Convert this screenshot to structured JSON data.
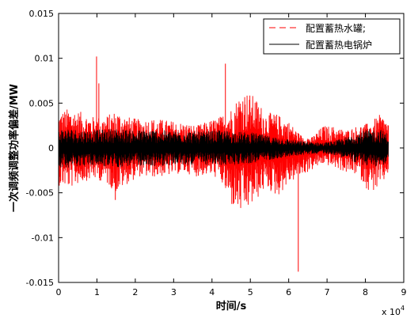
{
  "chart_data": {
    "type": "line",
    "xlabel": "时间/s",
    "ylabel": "一次调频调整功率偏差/MW",
    "x_multiplier_label": "x 10",
    "x_multiplier_exponent": "4",
    "xlim": [
      0,
      9
    ],
    "ylim": [
      -0.015,
      0.015
    ],
    "x_ticks": [
      "0",
      "1",
      "2",
      "3",
      "4",
      "5",
      "6",
      "7",
      "8",
      "9"
    ],
    "y_ticks": [
      "0.015",
      "0.01",
      "0.005",
      "0",
      "-0.005",
      "-0.01",
      "-0.015"
    ],
    "grid": false,
    "legend_position": "top-right",
    "series": [
      {
        "name": "配置蓄热水罐;",
        "color": "#ff0000",
        "line_style": "dashed",
        "envelope": {
          "x": [
            0,
            0.3,
            0.6,
            0.9,
            1.2,
            1.5,
            1.8,
            2.1,
            2.4,
            2.7,
            3.0,
            3.3,
            3.6,
            3.9,
            4.2,
            4.5,
            4.8,
            5.1,
            5.4,
            5.7,
            6.0,
            6.3,
            6.6,
            6.9,
            7.2,
            7.5,
            7.8,
            8.1,
            8.4,
            8.6
          ],
          "upper": [
            0.004,
            0.0045,
            0.004,
            0.0035,
            0.0035,
            0.0042,
            0.0035,
            0.0032,
            0.0033,
            0.0032,
            0.003,
            0.0028,
            0.0025,
            0.003,
            0.0035,
            0.0045,
            0.0065,
            0.0058,
            0.004,
            0.0038,
            0.003,
            0.0015,
            0.0012,
            0.0025,
            0.0024,
            0.002,
            0.0025,
            0.0028,
            0.0038,
            0.003
          ],
          "lower": [
            -0.0042,
            -0.0045,
            -0.0038,
            -0.0035,
            -0.0038,
            -0.005,
            -0.004,
            -0.0032,
            -0.0033,
            -0.0032,
            -0.003,
            -0.0028,
            -0.0032,
            -0.003,
            -0.0035,
            -0.0065,
            -0.0075,
            -0.0062,
            -0.0045,
            -0.0055,
            -0.004,
            -0.0032,
            -0.0025,
            -0.0018,
            -0.0022,
            -0.0028,
            -0.003,
            -0.005,
            -0.0045,
            -0.0028
          ]
        },
        "spikes": [
          {
            "x": 0.99,
            "y": 0.0102
          },
          {
            "x": 1.05,
            "y": 0.0072
          },
          {
            "x": 4.35,
            "y": 0.0094
          },
          {
            "x": 6.25,
            "y": -0.0138
          },
          {
            "x": 1.48,
            "y": -0.0058
          }
        ]
      },
      {
        "name": "配置蓄热电锅炉",
        "color": "#000000",
        "line_style": "solid",
        "envelope": {
          "x": [
            0,
            0.3,
            0.6,
            0.9,
            1.2,
            1.5,
            1.8,
            2.1,
            2.4,
            2.7,
            3.0,
            3.3,
            3.6,
            3.9,
            4.2,
            4.5,
            4.8,
            5.1,
            5.4,
            5.7,
            6.0,
            6.3,
            6.6,
            6.9,
            7.2,
            7.5,
            7.8,
            8.1,
            8.4,
            8.6
          ],
          "upper": [
            0.0022,
            0.0022,
            0.002,
            0.002,
            0.0021,
            0.0022,
            0.0021,
            0.002,
            0.0021,
            0.002,
            0.0019,
            0.002,
            0.0018,
            0.0019,
            0.002,
            0.0019,
            0.0018,
            0.0017,
            0.0014,
            0.0012,
            0.001,
            0.0008,
            0.0007,
            0.0006,
            0.0008,
            0.0012,
            0.0018,
            0.0021,
            0.0021,
            0.0016
          ],
          "lower": [
            -0.0022,
            -0.0022,
            -0.002,
            -0.002,
            -0.0021,
            -0.0022,
            -0.0021,
            -0.002,
            -0.0021,
            -0.002,
            -0.0019,
            -0.002,
            -0.0018,
            -0.0019,
            -0.002,
            -0.0019,
            -0.0018,
            -0.0017,
            -0.0014,
            -0.0012,
            -0.001,
            -0.0008,
            -0.0007,
            -0.0006,
            -0.0008,
            -0.0012,
            -0.0018,
            -0.0021,
            -0.0021,
            -0.0016
          ]
        }
      }
    ]
  }
}
